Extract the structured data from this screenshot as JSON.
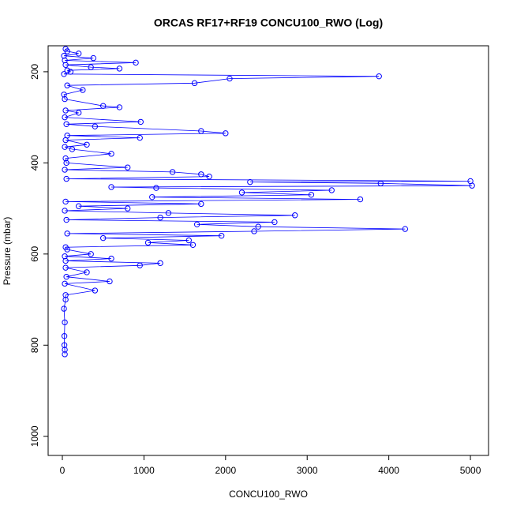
{
  "chart_data": {
    "type": "line",
    "title": "ORCAS RF17+RF19 CONCU100_RWO (Log)",
    "x_label": "CONCU100_RWO",
    "y_label": "Pressure (mbar)",
    "color": "#0000ff",
    "x": [
      40,
      60,
      200,
      20,
      380,
      30,
      900,
      40,
      350,
      700,
      60,
      100,
      20,
      3880,
      2050,
      1620,
      60,
      250,
      20,
      30,
      500,
      700,
      40,
      200,
      30,
      960,
      50,
      400,
      1700,
      2000,
      60,
      950,
      40,
      300,
      30,
      120,
      600,
      40,
      50,
      800,
      30,
      1350,
      1700,
      1800,
      50,
      5000,
      2300,
      3900,
      5020,
      600,
      1150,
      3300,
      2200,
      3050,
      1100,
      3650,
      40,
      1700,
      200,
      800,
      30,
      1300,
      2850,
      1200,
      50,
      2600,
      1650,
      2400,
      4200,
      2350,
      60,
      1950,
      500,
      1550,
      1050,
      1600,
      40,
      60,
      350,
      30,
      600,
      40,
      1200,
      950,
      40,
      300,
      50,
      580,
      30,
      400,
      40,
      40,
      20,
      30,
      25,
      25,
      30,
      30
    ],
    "values": [
      150,
      155,
      160,
      165,
      170,
      175,
      180,
      185,
      190,
      193,
      197,
      200,
      205,
      210,
      215,
      225,
      230,
      240,
      250,
      260,
      275,
      278,
      285,
      290,
      300,
      310,
      315,
      320,
      330,
      335,
      340,
      345,
      350,
      360,
      365,
      370,
      380,
      390,
      400,
      410,
      415,
      420,
      425,
      430,
      435,
      440,
      442,
      445,
      450,
      453,
      455,
      460,
      465,
      470,
      475,
      480,
      485,
      490,
      495,
      500,
      505,
      510,
      515,
      520,
      525,
      530,
      535,
      540,
      545,
      550,
      555,
      560,
      565,
      570,
      575,
      580,
      585,
      590,
      600,
      605,
      610,
      615,
      620,
      625,
      630,
      640,
      650,
      660,
      665,
      680,
      690,
      700,
      720,
      750,
      780,
      800,
      810,
      820
    ],
    "xlim": [
      -174,
      5222
    ],
    "xticks": [
      0,
      1000,
      2000,
      3000,
      4000,
      5000
    ],
    "ylim": [
      1042,
      143
    ],
    "yticks": [
      200,
      400,
      600,
      800,
      1000
    ]
  }
}
